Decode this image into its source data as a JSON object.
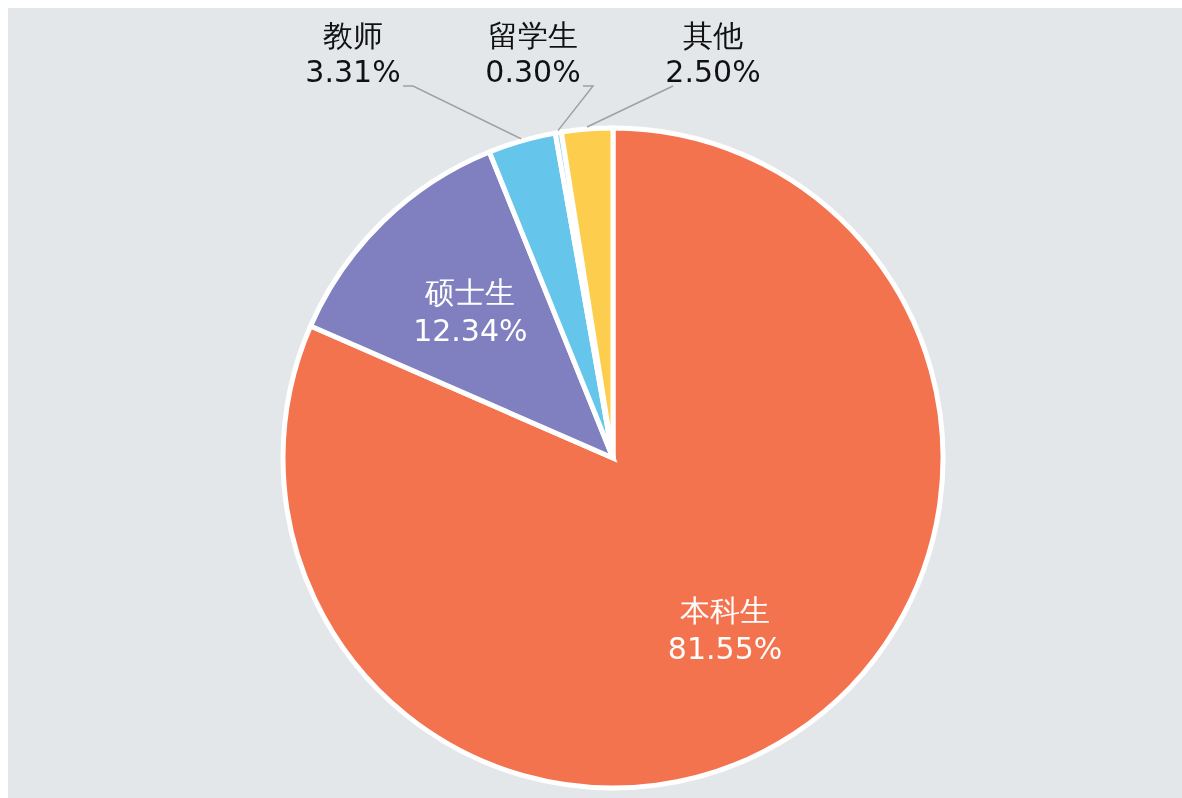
{
  "chart_data": {
    "type": "pie",
    "categories": [
      "本科生",
      "硕士生",
      "教师",
      "留学生",
      "其他"
    ],
    "values": [
      81.55,
      12.34,
      3.31,
      0.3,
      2.5
    ],
    "value_labels": [
      "81.55%",
      "12.34%",
      "3.31%",
      "0.30%",
      "2.50%"
    ],
    "colors": [
      "#f4734f",
      "#8080c0",
      "#66c5ea",
      "#9fd5ee",
      "#fdce4e"
    ],
    "legend": false
  }
}
